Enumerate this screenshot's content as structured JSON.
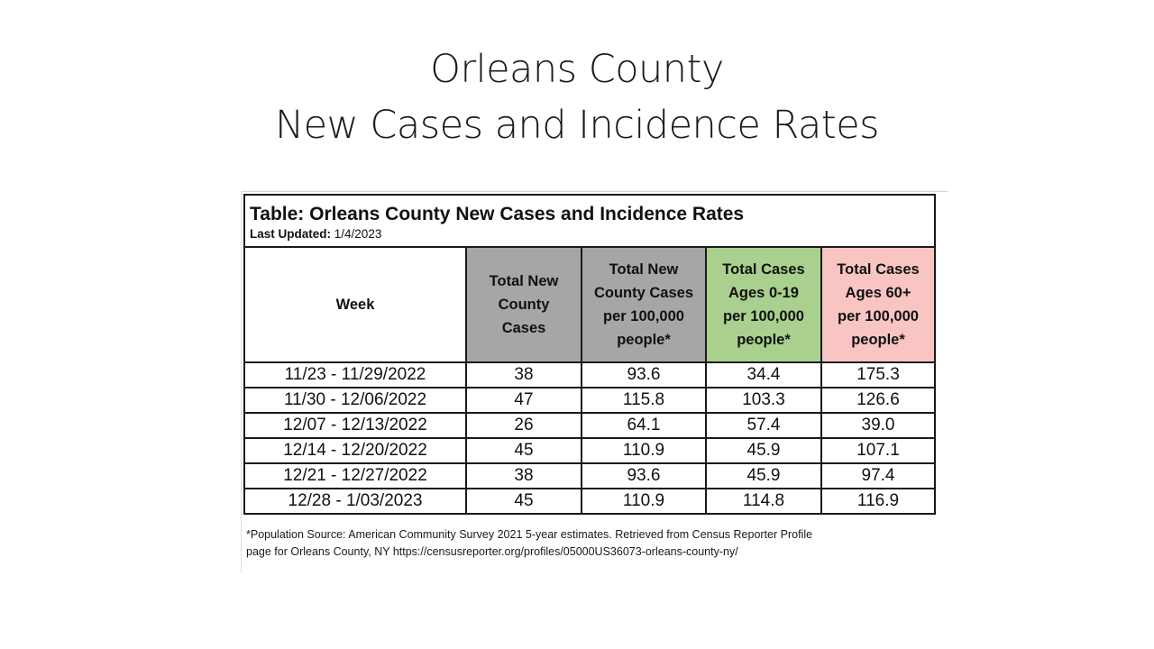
{
  "slide": {
    "title_line1": "Orleans County",
    "title_line2": "New Cases and Incidence Rates"
  },
  "table": {
    "caption": "Table: Orleans County New Cases and Incidence Rates",
    "updated_label": "Last Updated:",
    "updated_value": "1/4/2023",
    "headers": [
      {
        "lines": [
          "Week"
        ]
      },
      {
        "lines": [
          "Total New",
          "County",
          "Cases"
        ]
      },
      {
        "lines": [
          "Total New",
          "County Cases",
          "per 100,000",
          "people*"
        ]
      },
      {
        "lines": [
          "Total Cases",
          "Ages 0-19",
          "per 100,000",
          "people*"
        ]
      },
      {
        "lines": [
          "Total Cases",
          "Ages 60+",
          "per 100,000",
          "people*"
        ]
      }
    ],
    "header_colors": [
      "#ffffff",
      "#a6a6a6",
      "#a6a6a6",
      "#a9d08e",
      "#f8c5c3"
    ],
    "rows": [
      [
        "11/23 - 11/29/2022",
        "38",
        "93.6",
        "34.4",
        "175.3"
      ],
      [
        "11/30 - 12/06/2022",
        "47",
        "115.8",
        "103.3",
        "126.6"
      ],
      [
        "12/07 - 12/13/2022",
        "26",
        "64.1",
        "57.4",
        "39.0"
      ],
      [
        "12/14 - 12/20/2022",
        "45",
        "110.9",
        "45.9",
        "107.1"
      ],
      [
        "12/21 - 12/27/2022",
        "38",
        "93.6",
        "45.9",
        "97.4"
      ],
      [
        "12/28 - 1/03/2023",
        "45",
        "110.9",
        "114.8",
        "116.9"
      ]
    ],
    "footnote_line1": "*Population Source: American Community Survey 2021 5-year estimates. Retrieved from Census Reporter Profile",
    "footnote_line2": "page for Orleans County, NY https://censusreporter.org/profiles/05000US36073-orleans-county-ny/"
  }
}
